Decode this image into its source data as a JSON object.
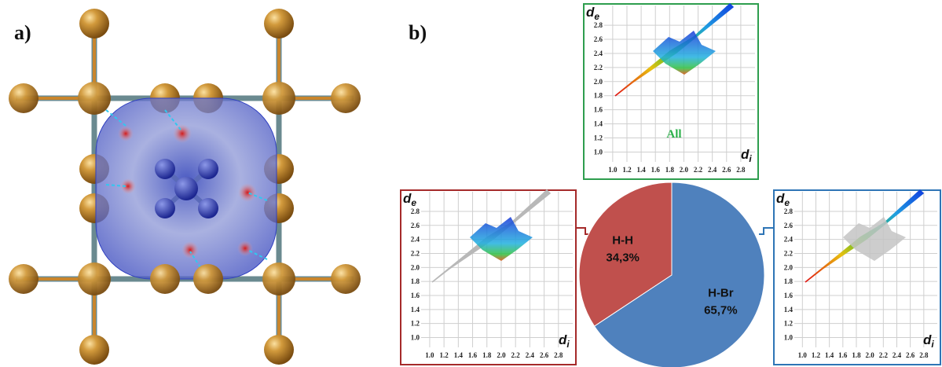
{
  "panel_labels": [
    "a)",
    "b)"
  ],
  "chart_data": {
    "type": "pie",
    "categories": [
      "H-H",
      "H-Br"
    ],
    "values": [
      34.3,
      65.7
    ],
    "value_labels": [
      "34,3%",
      "65,7%"
    ],
    "colors": [
      "#c0504d",
      "#4f81bd"
    ]
  },
  "fingerprint_plots": {
    "x_label": {
      "main": "d",
      "sub": "i"
    },
    "y_label": {
      "main": "d",
      "sub": "e"
    },
    "xlim": [
      0.88,
      3.0
    ],
    "ylim": [
      0.86,
      3.08
    ],
    "xticks": [
      {
        "value": 1,
        "label": "1.0"
      },
      1.2,
      1.4,
      1.6,
      1.8,
      {
        "value": 2,
        "label": "2.0"
      },
      2.2,
      2.4,
      2.6,
      2.8
    ],
    "yticks": [
      {
        "value": 1,
        "label": "1.0"
      },
      1.2,
      1.4,
      1.6,
      1.8,
      {
        "value": 2,
        "label": "2.0"
      },
      2.2,
      2.4,
      2.6,
      2.8
    ],
    "annotation": "All"
  }
}
